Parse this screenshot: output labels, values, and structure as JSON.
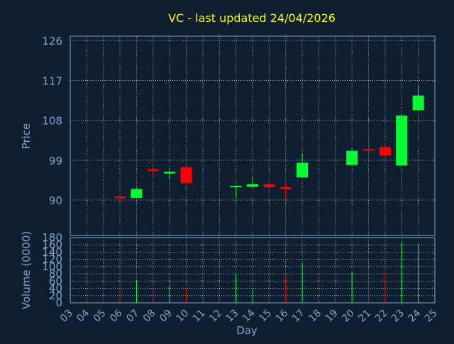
{
  "chart_data": {
    "type": "candlestick",
    "title": "VC - last updated 24/04/2026",
    "xlabel": "Day",
    "price_ylabel": "Price",
    "volume_ylabel": "Volume (0000)",
    "x_ticks": [
      "03",
      "04",
      "05",
      "06",
      "07",
      "08",
      "09",
      "10",
      "11",
      "12",
      "13",
      "14",
      "15",
      "16",
      "17",
      "18",
      "19",
      "20",
      "21",
      "22",
      "23",
      "24",
      "25"
    ],
    "price_yticks": [
      90,
      99,
      108,
      117,
      126
    ],
    "price_ylim": [
      82,
      127
    ],
    "volume_yticks": [
      0,
      20,
      40,
      60,
      80,
      100,
      120,
      140,
      160,
      180
    ],
    "volume_ylim": [
      0,
      180
    ],
    "grid": true,
    "colors": {
      "up": "#00ff33",
      "down": "#ff0000",
      "title": "#ffff00",
      "axis_text": "#7fa3c8",
      "background": "#0f1f32"
    },
    "candles": [
      {
        "day": "06",
        "open": 90.8,
        "close": 90.6,
        "high": 91.2,
        "low": 89.7,
        "volume": 40
      },
      {
        "day": "07",
        "open": 90.5,
        "close": 92.5,
        "high": 92.7,
        "low": 90.3,
        "volume": 60
      },
      {
        "day": "08",
        "open": 97.0,
        "close": 96.6,
        "high": 97.4,
        "low": 95.0,
        "volume": 40
      },
      {
        "day": "09",
        "open": 96.0,
        "close": 96.4,
        "high": 96.6,
        "low": 94.6,
        "volume": 48
      },
      {
        "day": "10",
        "open": 97.4,
        "close": 93.8,
        "high": 97.5,
        "low": 93.7,
        "volume": 40
      },
      {
        "day": "13",
        "open": 93.0,
        "close": 93.2,
        "high": 93.4,
        "low": 90.3,
        "volume": 80
      },
      {
        "day": "14",
        "open": 93.0,
        "close": 93.6,
        "high": 95.4,
        "low": 92.8,
        "volume": 36
      },
      {
        "day": "15",
        "open": 93.6,
        "close": 92.9,
        "high": 93.9,
        "low": 91.6,
        "volume": 28
      },
      {
        "day": "16",
        "open": 92.9,
        "close": 92.5,
        "high": 93.9,
        "low": 90.1,
        "volume": 72
      },
      {
        "day": "17",
        "open": 95.1,
        "close": 98.4,
        "high": 100.6,
        "low": 95.0,
        "volume": 108
      },
      {
        "day": "20",
        "open": 97.9,
        "close": 101.1,
        "high": 101.6,
        "low": 97.8,
        "volume": 86
      },
      {
        "day": "21",
        "open": 101.5,
        "close": 101.3,
        "high": 104.0,
        "low": 99.6,
        "volume": 64
      },
      {
        "day": "22",
        "open": 102.0,
        "close": 100.0,
        "high": 103.0,
        "low": 99.7,
        "volume": 80
      },
      {
        "day": "23",
        "open": 97.8,
        "close": 109.1,
        "high": 109.3,
        "low": 97.7,
        "volume": 166
      },
      {
        "day": "24",
        "open": 110.3,
        "close": 113.6,
        "high": 115.7,
        "low": 110.1,
        "volume": 158
      }
    ]
  }
}
